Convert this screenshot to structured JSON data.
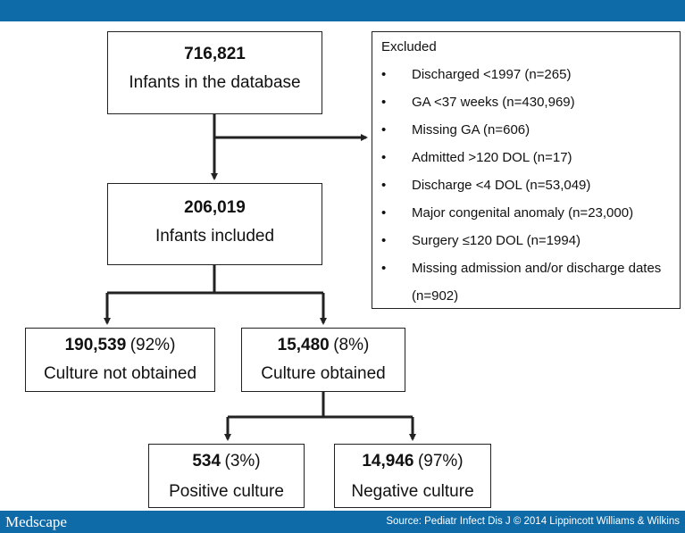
{
  "header": {},
  "root": {
    "count": "716,821",
    "label": "Infants in the database"
  },
  "included": {
    "count": "206,019",
    "label": "Infants included"
  },
  "excluded": {
    "title": "Excluded",
    "bullet": "•",
    "items": [
      "Discharged <1997 (n=265)",
      "GA <37 weeks (n=430,969)",
      "Missing GA (n=606)",
      "Admitted >120 DOL (n=17)",
      "Discharge <4 DOL (n=53,049)",
      "Major congenital anomaly (n=23,000)",
      "Surgery ≤120 DOL (n=1994)",
      "Missing admission and/or discharge dates (n=902)"
    ]
  },
  "not_obtained": {
    "count": "190,539",
    "pct": "(92%)",
    "label": "Culture not obtained"
  },
  "obtained": {
    "count": "15,480",
    "pct": "(8%)",
    "label": "Culture obtained"
  },
  "positive": {
    "count": "534",
    "pct": "(3%)",
    "label": "Positive culture"
  },
  "negative": {
    "count": "14,946",
    "pct": "(97%)",
    "label": "Negative culture"
  },
  "footer": {
    "logo": "Medscape",
    "source": "Source: Pediatr Infect Dis J © 2014 Lippincott Williams & Wilkins"
  },
  "colors": {
    "bar": "#0f6aa8",
    "line": "#222222"
  }
}
